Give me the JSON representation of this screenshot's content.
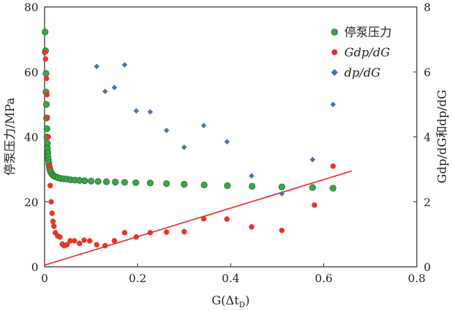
{
  "chart_data": {
    "type": "scatter",
    "xlabel": "G(Δt",
    "xlabel_sub": "D",
    "xlabel_suffix": ")",
    "ylabel_left": "停泵压力/MPa",
    "ylabel_right": "Gdp/dG和dp/dG",
    "xlim": [
      0,
      0.8
    ],
    "ylim_left": [
      0,
      80
    ],
    "ylim_right": [
      0,
      8
    ],
    "x_ticks": [
      "0",
      "0.2",
      "0.4",
      "0.6",
      "0.8"
    ],
    "x_tick_values": [
      0,
      0.2,
      0.4,
      0.6,
      0.8
    ],
    "y_left_ticks": [
      "0",
      "20",
      "40",
      "60",
      "80"
    ],
    "y_left_tick_values": [
      0,
      20,
      40,
      60,
      80
    ],
    "y_right_ticks": [
      "0",
      "2",
      "4",
      "6",
      "8"
    ],
    "y_right_tick_values": [
      0,
      2,
      4,
      6,
      8
    ],
    "legend_position": "top-right",
    "series": [
      {
        "name": "停泵压力",
        "axis": "left",
        "marker": "circle",
        "color": "#3ea34a",
        "points": [
          [
            0.001,
            72.3
          ],
          [
            0.002,
            66.5
          ],
          [
            0.003,
            59.5
          ],
          [
            0.003,
            53.8
          ],
          [
            0.004,
            50.0
          ],
          [
            0.004,
            45.8
          ],
          [
            0.005,
            42.5
          ],
          [
            0.005,
            40.0
          ],
          [
            0.006,
            38.0
          ],
          [
            0.006,
            36.5
          ],
          [
            0.007,
            35.2
          ],
          [
            0.007,
            34.0
          ],
          [
            0.008,
            33.0
          ],
          [
            0.009,
            32.0
          ],
          [
            0.01,
            31.0
          ],
          [
            0.011,
            30.2
          ],
          [
            0.012,
            29.6
          ],
          [
            0.014,
            29.0
          ],
          [
            0.016,
            28.5
          ],
          [
            0.019,
            28.1
          ],
          [
            0.022,
            27.8
          ],
          [
            0.026,
            27.6
          ],
          [
            0.03,
            27.4
          ],
          [
            0.035,
            27.2
          ],
          [
            0.041,
            27.1
          ],
          [
            0.048,
            27.0
          ],
          [
            0.056,
            26.8
          ],
          [
            0.065,
            26.7
          ],
          [
            0.075,
            26.6
          ],
          [
            0.086,
            26.5
          ],
          [
            0.1,
            26.4
          ],
          [
            0.115,
            26.3
          ],
          [
            0.133,
            26.2
          ],
          [
            0.152,
            26.1
          ],
          [
            0.172,
            26.0
          ],
          [
            0.196,
            25.9
          ],
          [
            0.227,
            25.8
          ],
          [
            0.262,
            25.6
          ],
          [
            0.3,
            25.4
          ],
          [
            0.343,
            25.2
          ],
          [
            0.393,
            25.0
          ],
          [
            0.446,
            24.8
          ],
          [
            0.51,
            24.6
          ],
          [
            0.576,
            24.4
          ],
          [
            0.62,
            24.2
          ]
        ]
      },
      {
        "name": "Gdp/dG",
        "axis": "right",
        "marker": "circle",
        "color": "#e8332a",
        "points": [
          [
            0.0,
            6.6
          ],
          [
            0.002,
            6.4
          ],
          [
            0.004,
            5.8
          ],
          [
            0.005,
            5.3
          ],
          [
            0.006,
            4.6
          ],
          [
            0.008,
            4.0
          ],
          [
            0.01,
            3.1
          ],
          [
            0.012,
            2.5
          ],
          [
            0.014,
            2.0
          ],
          [
            0.016,
            1.65
          ],
          [
            0.018,
            1.4
          ],
          [
            0.02,
            1.25
          ],
          [
            0.023,
            1.05
          ],
          [
            0.028,
            0.95
          ],
          [
            0.033,
            0.92
          ],
          [
            0.038,
            0.7
          ],
          [
            0.042,
            0.65
          ],
          [
            0.048,
            0.68
          ],
          [
            0.055,
            0.8
          ],
          [
            0.064,
            0.8
          ],
          [
            0.075,
            0.72
          ],
          [
            0.085,
            0.82
          ],
          [
            0.097,
            0.8
          ],
          [
            0.112,
            0.68
          ],
          [
            0.13,
            0.65
          ],
          [
            0.15,
            0.8
          ],
          [
            0.172,
            1.05
          ],
          [
            0.197,
            0.92
          ],
          [
            0.227,
            1.05
          ],
          [
            0.262,
            1.07
          ],
          [
            0.3,
            1.08
          ],
          [
            0.342,
            1.48
          ],
          [
            0.392,
            1.47
          ],
          [
            0.445,
            1.23
          ],
          [
            0.51,
            1.12
          ],
          [
            0.58,
            1.9
          ],
          [
            0.62,
            3.1
          ]
        ]
      },
      {
        "name": "dp/dG",
        "axis": "right",
        "marker": "diamond",
        "color": "#4a6fc0",
        "points": [
          [
            0.112,
            6.17
          ],
          [
            0.13,
            5.4
          ],
          [
            0.15,
            5.52
          ],
          [
            0.172,
            6.22
          ],
          [
            0.197,
            4.8
          ],
          [
            0.227,
            4.77
          ],
          [
            0.262,
            4.2
          ],
          [
            0.3,
            3.68
          ],
          [
            0.342,
            4.35
          ],
          [
            0.392,
            3.85
          ],
          [
            0.445,
            2.8
          ],
          [
            0.51,
            2.25
          ],
          [
            0.576,
            3.3
          ],
          [
            0.62,
            5.0
          ]
        ]
      }
    ],
    "trendline": {
      "axis": "right",
      "color": "#e8332a",
      "from": [
        0.0,
        0.05
      ],
      "to": [
        0.66,
        2.95
      ]
    }
  }
}
